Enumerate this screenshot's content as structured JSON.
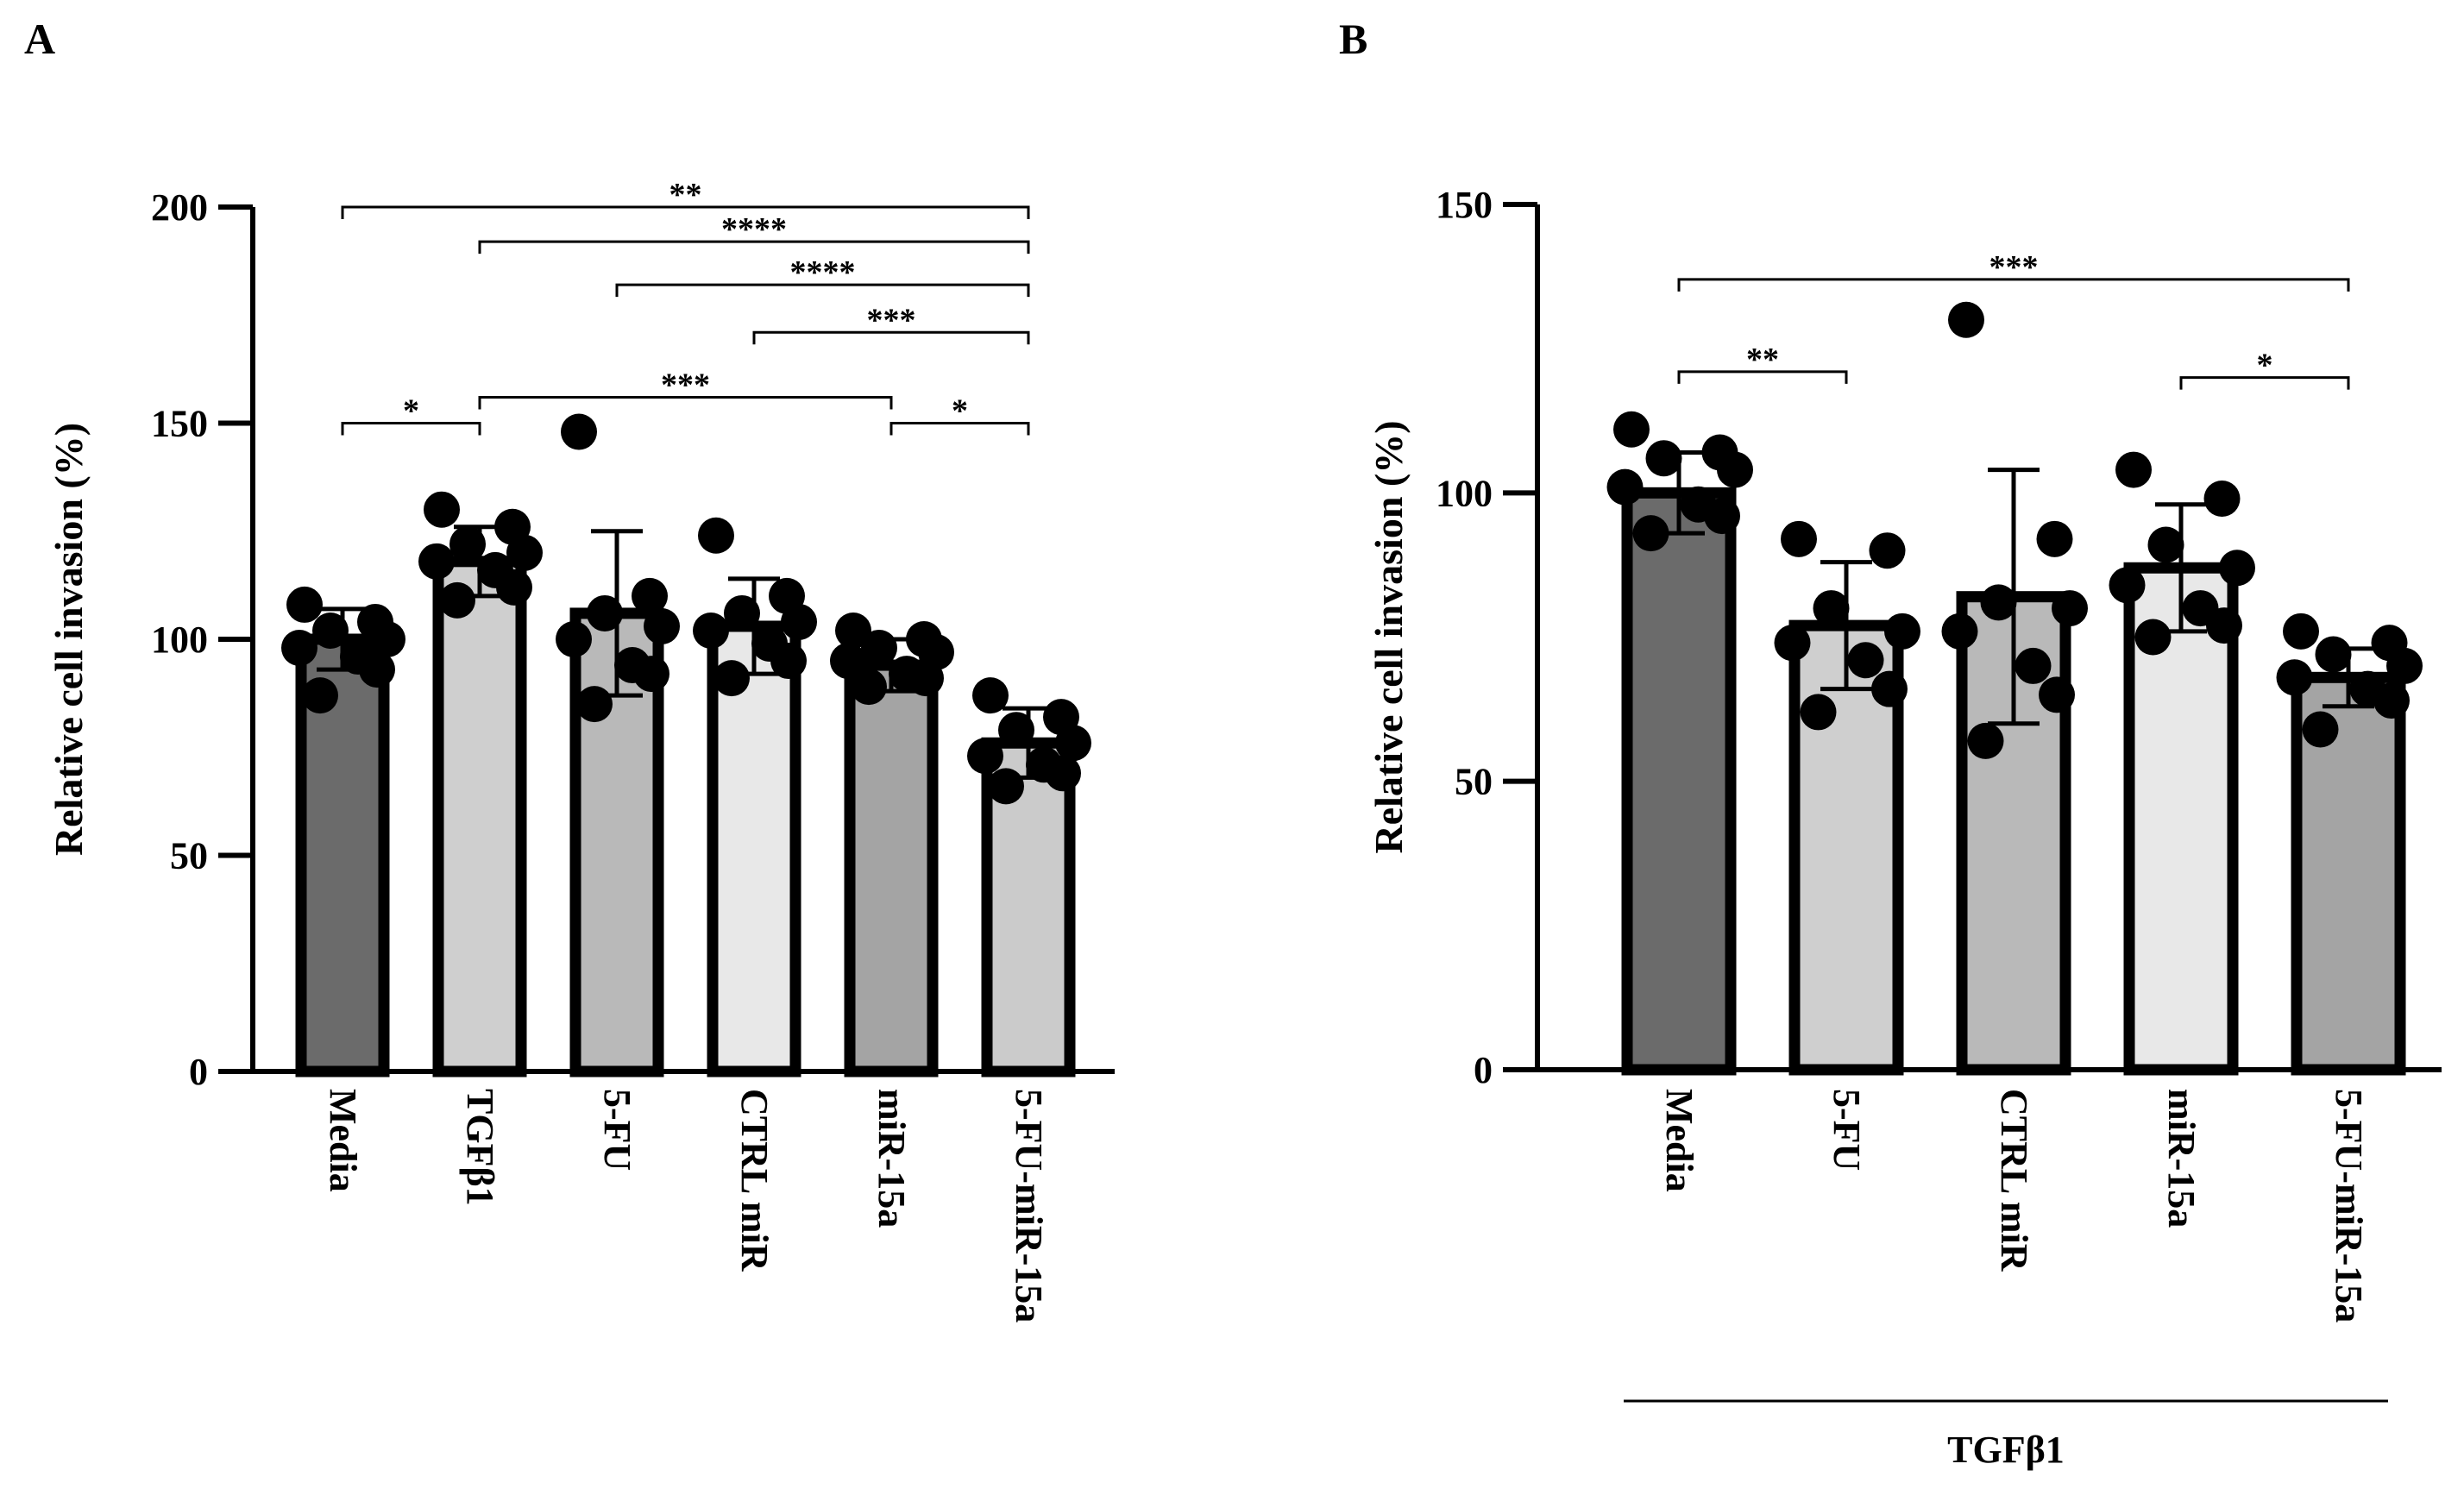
{
  "chart_data": [
    {
      "panel": "A",
      "type": "bar",
      "ylabel": "Relative cell invasion (%)",
      "xlabel": "",
      "ylim": [
        0,
        200
      ],
      "yticks": [
        0,
        50,
        100,
        150,
        200
      ],
      "categories": [
        "Media",
        "TGFβ1",
        "5-FU",
        "CTRL miR",
        "miR-15a",
        "5-FU-miR-15a"
      ],
      "values": [
        100,
        118,
        106,
        103,
        94,
        76
      ],
      "errors": [
        7,
        8,
        19,
        11,
        6,
        8
      ],
      "fills": [
        "#6b6b6b",
        "#cfcfcf",
        "#b9b9b9",
        "#e8e8e8",
        "#a4a4a4",
        "#cbcbcb"
      ],
      "points": [
        [
          108,
          104,
          102,
          100,
          98,
          96,
          93,
          87
        ],
        [
          130,
          126,
          122,
          120,
          118,
          116,
          112,
          109
        ],
        [
          148,
          110,
          106,
          103,
          100,
          94,
          92,
          85
        ],
        [
          124,
          110,
          106,
          104,
          102,
          99,
          95,
          91
        ],
        [
          102,
          100,
          98,
          97,
          95,
          92,
          91,
          89
        ],
        [
          87,
          82,
          79,
          76,
          73,
          71,
          69,
          66
        ]
      ],
      "significance": [
        {
          "from": 0,
          "to": 5,
          "label": "**",
          "level": 200
        },
        {
          "from": 1,
          "to": 5,
          "label": "****",
          "level": 192
        },
        {
          "from": 2,
          "to": 5,
          "label": "****",
          "level": 182
        },
        {
          "from": 3,
          "to": 5,
          "label": "***",
          "level": 171
        },
        {
          "from": 1,
          "to": 4,
          "label": "***",
          "level": 156
        },
        {
          "from": 0,
          "to": 1,
          "label": "*",
          "level": 150
        },
        {
          "from": 4,
          "to": 5,
          "label": "*",
          "level": 150
        }
      ]
    },
    {
      "panel": "B",
      "type": "bar",
      "ylabel": "Relative cell invasion (%)",
      "xlabel": "",
      "group_label": "TGFβ1",
      "ylim": [
        0,
        150
      ],
      "yticks": [
        0,
        50,
        100,
        150
      ],
      "categories": [
        "Media",
        "5-FU",
        "CTRL miR",
        "miR-15a",
        "5-FU-miR-15a"
      ],
      "values": [
        100,
        77,
        82,
        87,
        68
      ],
      "errors": [
        7,
        11,
        22,
        11,
        5
      ],
      "fills": [
        "#6b6b6b",
        "#cfcfcf",
        "#b9b9b9",
        "#e8e8e8",
        "#a4a4a4"
      ],
      "points": [
        [
          111,
          107,
          106,
          104,
          101,
          98,
          96,
          93
        ],
        [
          92,
          90,
          80,
          76,
          74,
          71,
          66,
          62
        ],
        [
          130,
          92,
          81,
          80,
          76,
          70,
          65,
          57
        ],
        [
          104,
          99,
          91,
          87,
          84,
          80,
          77,
          75
        ],
        [
          76,
          74,
          72,
          70,
          68,
          66,
          64,
          59
        ]
      ],
      "significance": [
        {
          "from": 0,
          "to": 4,
          "label": "***",
          "level": 137
        },
        {
          "from": 0,
          "to": 1,
          "label": "**",
          "level": 121
        },
        {
          "from": 3,
          "to": 4,
          "label": "*",
          "level": 120
        }
      ]
    }
  ],
  "panel_letters": [
    "A",
    "B"
  ]
}
